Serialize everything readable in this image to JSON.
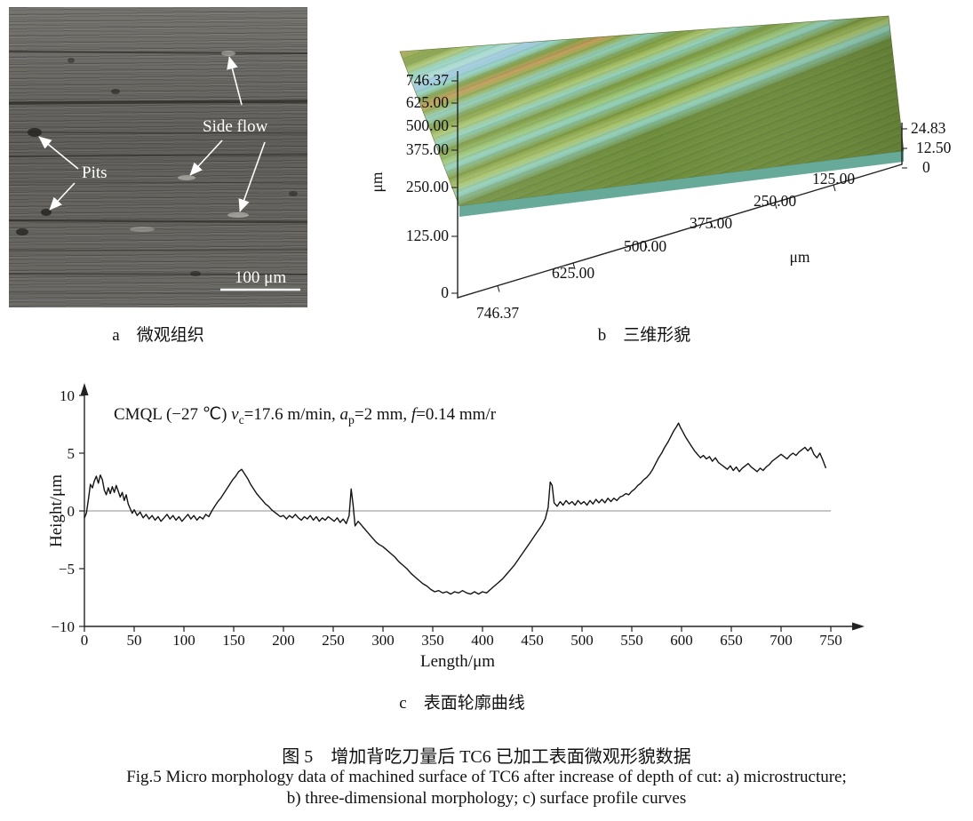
{
  "panel_a": {
    "caption": "a　微观组织",
    "pits_label": "Pits",
    "side_flow_label": "Side flow",
    "scale_bar_label": "100 μm"
  },
  "panel_b": {
    "caption": "b　三维形貌",
    "left_axis_unit": "μm",
    "bottom_axis_unit": "μm",
    "left_ticks": [
      "746.37",
      "625.00",
      "500.00",
      "375.00",
      "250.00",
      "125.00",
      "0"
    ],
    "bottom_ticks": [
      "746.37",
      "625.00",
      "500.00",
      "375.00",
      "250.00",
      "125.00"
    ],
    "right_ticks": [
      "24.83",
      "12.50",
      "0"
    ]
  },
  "panel_c": {
    "caption": "c　表面轮廓曲线",
    "annotation_segments": [
      {
        "t": "CMQL (−27 ℃) ",
        "s": "n"
      },
      {
        "t": "v",
        "s": "i"
      },
      {
        "t": "c",
        "s": "sub"
      },
      {
        "t": "=17.6 m/min, ",
        "s": "n"
      },
      {
        "t": "a",
        "s": "i"
      },
      {
        "t": "p",
        "s": "sub"
      },
      {
        "t": "=2 mm, ",
        "s": "n"
      },
      {
        "t": "f",
        "s": "i"
      },
      {
        "t": "=0.14 mm/r",
        "s": "n"
      }
    ]
  },
  "figure_caption": {
    "zh": "图 5　增加背吃刀量后 TC6 已加工表面微观形貌数据",
    "en_line1": "Fig.5 Micro morphology data of machined surface of TC6 after increase of depth of cut: a) microstructure;",
    "en_line2": "b) three-dimensional morphology; c) surface profile curves"
  },
  "chart_data": [
    {
      "panel": "b",
      "type": "surface_3d",
      "title": "",
      "xlabel": "μm",
      "ylabel": "μm",
      "x_range": [
        0,
        746.37
      ],
      "y_range": [
        0,
        746.37
      ],
      "z_range": [
        0,
        24.83
      ],
      "x_ticks": [
        746.37,
        625.0,
        500.0,
        375.0,
        250.0,
        125.0
      ],
      "y_ticks": [
        746.37,
        625.0,
        500.0,
        375.0,
        250.0,
        125.0,
        0
      ],
      "z_ticks": [
        24.83,
        12.5,
        0
      ],
      "description": "3D machined-surface morphology, parallel tool ridges, height 0–24.83 μm"
    },
    {
      "panel": "c",
      "type": "line",
      "title": "",
      "xlabel": "Length/μm",
      "ylabel": "Height/μm",
      "xlim": [
        0,
        750
      ],
      "ylim": [
        -10,
        10
      ],
      "x_ticks": [
        0,
        50,
        100,
        150,
        200,
        250,
        300,
        350,
        400,
        450,
        500,
        550,
        600,
        650,
        700,
        750
      ],
      "y_ticks": [
        -10,
        -5,
        0,
        5,
        10
      ],
      "annotation": "CMQL (−27 ℃) vc=17.6 m/min, ap=2 mm, f=0.14 mm/r",
      "series": [
        {
          "name": "surface profile",
          "points": [
            [
              0,
              -0.6
            ],
            [
              2,
              -0.2
            ],
            [
              4,
              1.0
            ],
            [
              6,
              2.3
            ],
            [
              8,
              2.0
            ],
            [
              10,
              2.6
            ],
            [
              12,
              3.0
            ],
            [
              14,
              2.4
            ],
            [
              16,
              3.1
            ],
            [
              18,
              2.7
            ],
            [
              20,
              1.8
            ],
            [
              22,
              1.4
            ],
            [
              24,
              2.0
            ],
            [
              26,
              1.5
            ],
            [
              28,
              2.1
            ],
            [
              30,
              1.6
            ],
            [
              32,
              2.2
            ],
            [
              34,
              1.7
            ],
            [
              36,
              1.2
            ],
            [
              38,
              1.6
            ],
            [
              40,
              0.9
            ],
            [
              42,
              1.4
            ],
            [
              44,
              0.6
            ],
            [
              46,
              0.2
            ],
            [
              48,
              -0.2
            ],
            [
              50,
              0.1
            ],
            [
              53,
              -0.4
            ],
            [
              56,
              -0.1
            ],
            [
              59,
              -0.6
            ],
            [
              62,
              -0.3
            ],
            [
              65,
              -0.7
            ],
            [
              68,
              -0.4
            ],
            [
              71,
              -0.8
            ],
            [
              74,
              -0.5
            ],
            [
              77,
              -0.9
            ],
            [
              80,
              -0.6
            ],
            [
              83,
              -0.3
            ],
            [
              86,
              -0.7
            ],
            [
              89,
              -0.4
            ],
            [
              92,
              -0.8
            ],
            [
              95,
              -0.5
            ],
            [
              98,
              -0.9
            ],
            [
              101,
              -0.6
            ],
            [
              104,
              -0.3
            ],
            [
              107,
              -0.7
            ],
            [
              110,
              -0.4
            ],
            [
              113,
              -0.8
            ],
            [
              116,
              -0.5
            ],
            [
              119,
              -0.7
            ],
            [
              122,
              -0.3
            ],
            [
              125,
              -0.5
            ],
            [
              128,
              0.0
            ],
            [
              131,
              0.4
            ],
            [
              134,
              0.8
            ],
            [
              137,
              1.1
            ],
            [
              140,
              1.5
            ],
            [
              143,
              1.9
            ],
            [
              146,
              2.3
            ],
            [
              149,
              2.7
            ],
            [
              152,
              3.0
            ],
            [
              155,
              3.4
            ],
            [
              158,
              3.6
            ],
            [
              161,
              3.2
            ],
            [
              164,
              2.8
            ],
            [
              167,
              2.3
            ],
            [
              170,
              1.9
            ],
            [
              173,
              1.5
            ],
            [
              176,
              1.2
            ],
            [
              179,
              0.9
            ],
            [
              182,
              0.6
            ],
            [
              185,
              0.4
            ],
            [
              188,
              0.1
            ],
            [
              191,
              -0.1
            ],
            [
              194,
              -0.3
            ],
            [
              197,
              -0.5
            ],
            [
              200,
              -0.4
            ],
            [
              203,
              -0.7
            ],
            [
              206,
              -0.4
            ],
            [
              209,
              -0.6
            ],
            [
              212,
              -0.3
            ],
            [
              215,
              -0.6
            ],
            [
              218,
              -0.8
            ],
            [
              221,
              -0.5
            ],
            [
              224,
              -0.7
            ],
            [
              227,
              -0.4
            ],
            [
              230,
              -0.8
            ],
            [
              233,
              -0.5
            ],
            [
              236,
              -0.9
            ],
            [
              239,
              -0.6
            ],
            [
              242,
              -0.8
            ],
            [
              245,
              -0.5
            ],
            [
              248,
              -0.7
            ],
            [
              251,
              -0.9
            ],
            [
              254,
              -0.6
            ],
            [
              257,
              -1.0
            ],
            [
              260,
              -0.7
            ],
            [
              263,
              -1.1
            ],
            [
              266,
              -0.4
            ],
            [
              268,
              1.9
            ],
            [
              270,
              0.5
            ],
            [
              272,
              -1.3
            ],
            [
              275,
              -0.9
            ],
            [
              278,
              -1.2
            ],
            [
              281,
              -1.5
            ],
            [
              284,
              -1.8
            ],
            [
              287,
              -2.1
            ],
            [
              290,
              -2.4
            ],
            [
              293,
              -2.7
            ],
            [
              296,
              -2.9
            ],
            [
              300,
              -3.1
            ],
            [
              304,
              -3.4
            ],
            [
              308,
              -3.7
            ],
            [
              312,
              -4.0
            ],
            [
              316,
              -4.4
            ],
            [
              320,
              -4.7
            ],
            [
              324,
              -5.0
            ],
            [
              328,
              -5.4
            ],
            [
              332,
              -5.7
            ],
            [
              336,
              -6.0
            ],
            [
              340,
              -6.3
            ],
            [
              344,
              -6.5
            ],
            [
              348,
              -6.8
            ],
            [
              352,
              -7.0
            ],
            [
              356,
              -6.9
            ],
            [
              360,
              -7.1
            ],
            [
              364,
              -7.0
            ],
            [
              368,
              -7.2
            ],
            [
              372,
              -7.0
            ],
            [
              376,
              -7.1
            ],
            [
              380,
              -6.9
            ],
            [
              384,
              -7.1
            ],
            [
              388,
              -7.2
            ],
            [
              392,
              -7.0
            ],
            [
              396,
              -7.2
            ],
            [
              400,
              -7.0
            ],
            [
              404,
              -7.1
            ],
            [
              408,
              -6.8
            ],
            [
              412,
              -6.5
            ],
            [
              416,
              -6.2
            ],
            [
              420,
              -5.9
            ],
            [
              424,
              -5.5
            ],
            [
              428,
              -5.1
            ],
            [
              432,
              -4.7
            ],
            [
              436,
              -4.2
            ],
            [
              440,
              -3.7
            ],
            [
              444,
              -3.2
            ],
            [
              448,
              -2.7
            ],
            [
              452,
              -2.2
            ],
            [
              456,
              -1.7
            ],
            [
              460,
              -1.2
            ],
            [
              463,
              -0.7
            ],
            [
              466,
              0.3
            ],
            [
              468,
              2.5
            ],
            [
              470,
              2.2
            ],
            [
              472,
              0.7
            ],
            [
              475,
              0.4
            ],
            [
              478,
              0.8
            ],
            [
              481,
              0.5
            ],
            [
              484,
              0.9
            ],
            [
              487,
              0.6
            ],
            [
              490,
              0.8
            ],
            [
              493,
              0.5
            ],
            [
              496,
              0.9
            ],
            [
              499,
              0.6
            ],
            [
              502,
              0.8
            ],
            [
              505,
              0.5
            ],
            [
              508,
              0.9
            ],
            [
              511,
              0.6
            ],
            [
              514,
              1.0
            ],
            [
              517,
              0.7
            ],
            [
              520,
              1.0
            ],
            [
              523,
              0.7
            ],
            [
              526,
              1.1
            ],
            [
              529,
              0.8
            ],
            [
              532,
              1.1
            ],
            [
              535,
              0.9
            ],
            [
              538,
              1.2
            ],
            [
              541,
              1.3
            ],
            [
              544,
              1.5
            ],
            [
              547,
              1.4
            ],
            [
              550,
              1.7
            ],
            [
              553,
              1.9
            ],
            [
              556,
              2.2
            ],
            [
              559,
              2.4
            ],
            [
              562,
              2.7
            ],
            [
              565,
              2.9
            ],
            [
              568,
              3.2
            ],
            [
              571,
              3.6
            ],
            [
              574,
              4.1
            ],
            [
              577,
              4.6
            ],
            [
              580,
              5.0
            ],
            [
              583,
              5.5
            ],
            [
              586,
              5.9
            ],
            [
              589,
              6.4
            ],
            [
              592,
              6.9
            ],
            [
              595,
              7.3
            ],
            [
              597,
              7.6
            ],
            [
              599,
              7.2
            ],
            [
              601,
              6.9
            ],
            [
              604,
              6.4
            ],
            [
              607,
              6.0
            ],
            [
              610,
              5.6
            ],
            [
              613,
              5.2
            ],
            [
              616,
              4.9
            ],
            [
              619,
              4.6
            ],
            [
              622,
              4.8
            ],
            [
              625,
              4.5
            ],
            [
              628,
              4.7
            ],
            [
              631,
              4.3
            ],
            [
              634,
              4.6
            ],
            [
              637,
              4.2
            ],
            [
              640,
              4.0
            ],
            [
              643,
              3.8
            ],
            [
              646,
              3.6
            ],
            [
              649,
              3.9
            ],
            [
              652,
              3.5
            ],
            [
              655,
              3.8
            ],
            [
              658,
              3.4
            ],
            [
              661,
              3.7
            ],
            [
              664,
              3.9
            ],
            [
              667,
              4.1
            ],
            [
              670,
              3.8
            ],
            [
              673,
              3.6
            ],
            [
              676,
              3.4
            ],
            [
              679,
              3.7
            ],
            [
              682,
              3.5
            ],
            [
              685,
              3.8
            ],
            [
              688,
              4.0
            ],
            [
              691,
              4.3
            ],
            [
              694,
              4.5
            ],
            [
              697,
              4.7
            ],
            [
              700,
              4.9
            ],
            [
              703,
              4.7
            ],
            [
              706,
              4.5
            ],
            [
              709,
              4.8
            ],
            [
              712,
              5.0
            ],
            [
              715,
              4.8
            ],
            [
              718,
              5.1
            ],
            [
              721,
              5.3
            ],
            [
              724,
              5.5
            ],
            [
              727,
              5.2
            ],
            [
              730,
              5.5
            ],
            [
              733,
              4.9
            ],
            [
              736,
              4.6
            ],
            [
              739,
              5.0
            ],
            [
              742,
              4.4
            ],
            [
              745,
              3.7
            ]
          ]
        }
      ]
    }
  ]
}
